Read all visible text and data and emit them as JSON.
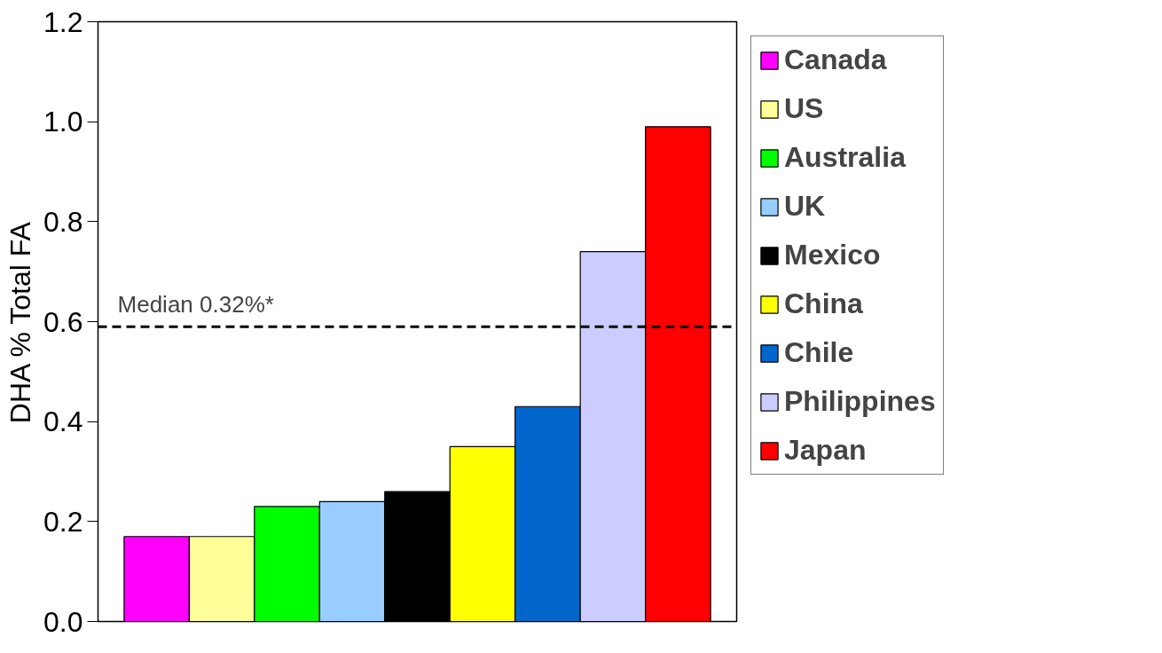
{
  "chart_data": {
    "type": "bar",
    "ylabel": "DHA % Total FA",
    "categories": [
      null,
      null,
      null,
      null,
      null,
      null,
      null,
      null,
      null
    ],
    "series": [
      {
        "name": "Canada",
        "color": "#ff00ff",
        "values": [
          0.17,
          null,
          null,
          null,
          null,
          null,
          null,
          null,
          null
        ]
      },
      {
        "name": "US",
        "color": "#ffff99",
        "values": [
          null,
          0.17,
          null,
          null,
          null,
          null,
          null,
          null,
          null
        ]
      },
      {
        "name": "Australia",
        "color": "#00ff00",
        "values": [
          null,
          null,
          0.23,
          null,
          null,
          null,
          null,
          null,
          null
        ]
      },
      {
        "name": "UK",
        "color": "#99ccff",
        "values": [
          null,
          null,
          null,
          0.24,
          null,
          null,
          null,
          null,
          null
        ]
      },
      {
        "name": "Mexico",
        "color": "#000000",
        "values": [
          null,
          null,
          null,
          null,
          0.26,
          null,
          null,
          null,
          null
        ]
      },
      {
        "name": "China",
        "color": "#ffff00",
        "values": [
          null,
          null,
          null,
          null,
          null,
          0.35,
          null,
          null,
          null
        ]
      },
      {
        "name": "Chile",
        "color": "#0066cc",
        "values": [
          null,
          null,
          null,
          null,
          null,
          null,
          0.43,
          null,
          null
        ]
      },
      {
        "name": "Philippines",
        "color": "#ccccff",
        "values": [
          null,
          null,
          null,
          null,
          null,
          null,
          null,
          0.74,
          null
        ]
      },
      {
        "name": "Japan",
        "color": "#ff0000",
        "values": [
          null,
          null,
          null,
          null,
          null,
          null,
          null,
          null,
          0.99
        ]
      }
    ],
    "ylim": [
      0,
      1.2
    ],
    "yticks": [
      {
        "value": 0,
        "label": "0.0"
      },
      {
        "value": 0.2,
        "label": "0.2"
      },
      {
        "value": 0.4,
        "label": "0.4"
      },
      {
        "value": 0.6,
        "label": "0.6"
      },
      {
        "value": 0.8,
        "label": "0.8"
      },
      {
        "value": 1.0,
        "label": "1.0"
      },
      {
        "value": 1.2,
        "label": "1.2"
      }
    ],
    "ref_lines": [
      {
        "axis": "y",
        "value": 0.59,
        "label": "Median 0.32%*",
        "color": "#000000",
        "line_style": "dashed"
      }
    ],
    "legend": "right",
    "tick_labels": "y",
    "grid": false
  }
}
